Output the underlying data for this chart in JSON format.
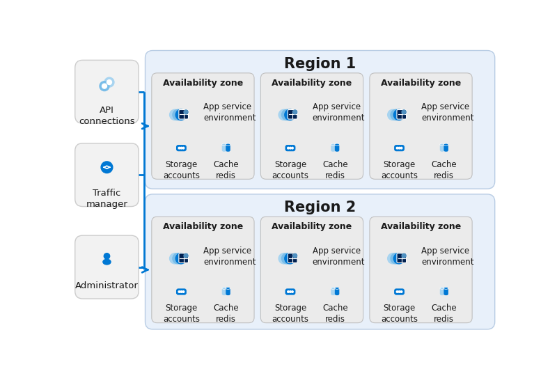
{
  "bg_color": "#ffffff",
  "region_bg": "#e8f0fa",
  "az_bg": "#ebebeb",
  "left_box_bg": "#f2f2f2",
  "left_box_edge": "#cccccc",
  "az_edge": "#c0c0c0",
  "region_edge": "#b8cce4",
  "arrow_color": "#0078d4",
  "text_color": "#1a1a1a",
  "icon_blue_dark": "#0078d4",
  "icon_blue_mid": "#1a5fa8",
  "icon_blue_light": "#7abde8",
  "icon_blue_pale": "#a8d4f0",
  "region1_title": "Region 1",
  "region2_title": "Region 2",
  "az_title": "Availability zone",
  "left_labels": [
    "API\nconnections",
    "Traffic\nmanager",
    "Administrator"
  ]
}
